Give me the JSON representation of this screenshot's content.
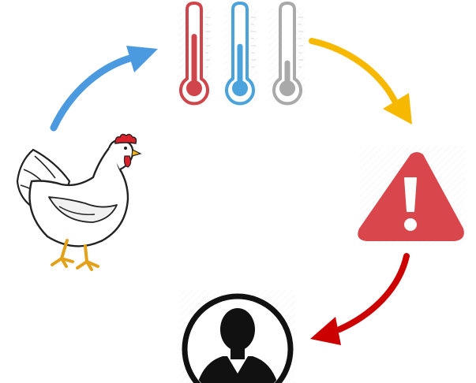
{
  "diagram": {
    "nodes": [
      {
        "id": "chicken",
        "icon": "chicken-icon"
      },
      {
        "id": "thermometers",
        "icon": "thermometer-icons",
        "items": [
          {
            "icon": "thermometer-hot-icon",
            "color": "#cf454b",
            "level": 0.75
          },
          {
            "icon": "thermometer-cold-icon",
            "color": "#4aa3dc",
            "level": 0.6
          },
          {
            "icon": "thermometer-neutral-icon",
            "color": "#a9a9a9",
            "level": 0.35
          }
        ]
      },
      {
        "id": "warning",
        "icon": "warning-triangle-icon",
        "color": "#d9464c"
      },
      {
        "id": "user",
        "icon": "user-avatar-icon"
      }
    ],
    "arrows": [
      {
        "from": "chicken",
        "to": "thermometers",
        "color": "#4b9ae0"
      },
      {
        "from": "thermometers",
        "to": "warning",
        "color": "#f7b800"
      },
      {
        "from": "warning",
        "to": "user",
        "color": "#cc0000"
      }
    ]
  }
}
